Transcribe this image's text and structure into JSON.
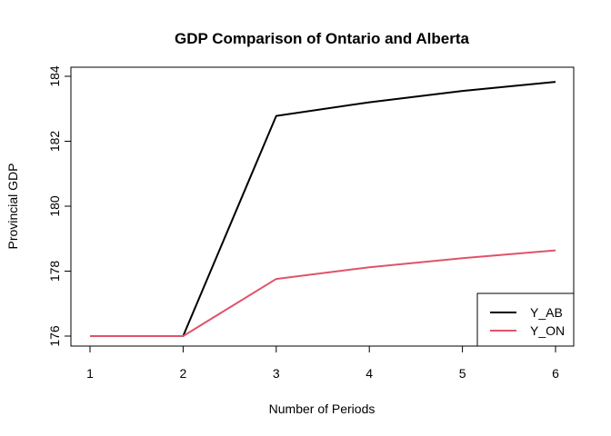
{
  "chart_data": {
    "type": "line",
    "title": "GDP Comparison of Ontario and Alberta",
    "xlabel": "Number of Periods",
    "ylabel": "Provincial GDP",
    "x": [
      1,
      2,
      3,
      4,
      5,
      6
    ],
    "xlim": [
      1,
      6
    ],
    "ylim": [
      176,
      184
    ],
    "xticks": [
      1,
      2,
      3,
      4,
      5,
      6
    ],
    "yticks": [
      176,
      178,
      180,
      182,
      184
    ],
    "grid": false,
    "legend_position": "bottom-right",
    "series": [
      {
        "name": "Y_AB",
        "color": "#000000",
        "values": [
          176.0,
          176.0,
          182.78,
          183.2,
          183.55,
          183.83
        ]
      },
      {
        "name": "Y_ON",
        "color": "#DF536B",
        "values": [
          176.0,
          176.0,
          177.76,
          178.12,
          178.4,
          178.64
        ]
      }
    ]
  }
}
